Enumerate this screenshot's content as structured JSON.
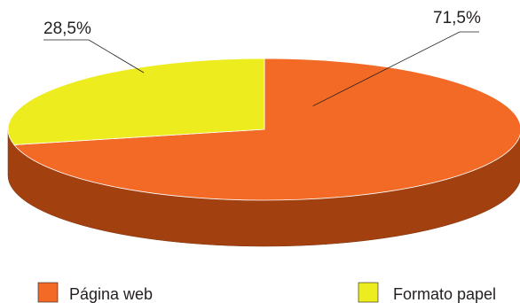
{
  "chart_data": {
    "type": "pie",
    "style": "3d",
    "title": "",
    "slices": [
      {
        "label": "Página web",
        "value": 71.5,
        "value_label": "71,5%",
        "color": "#f26a26",
        "side_color": "#a2410f"
      },
      {
        "label": "Formato papel",
        "value": 28.5,
        "value_label": "28,5%",
        "color": "#ecec1f",
        "side_color": "#a2410f"
      }
    ],
    "legend_position": "bottom"
  }
}
